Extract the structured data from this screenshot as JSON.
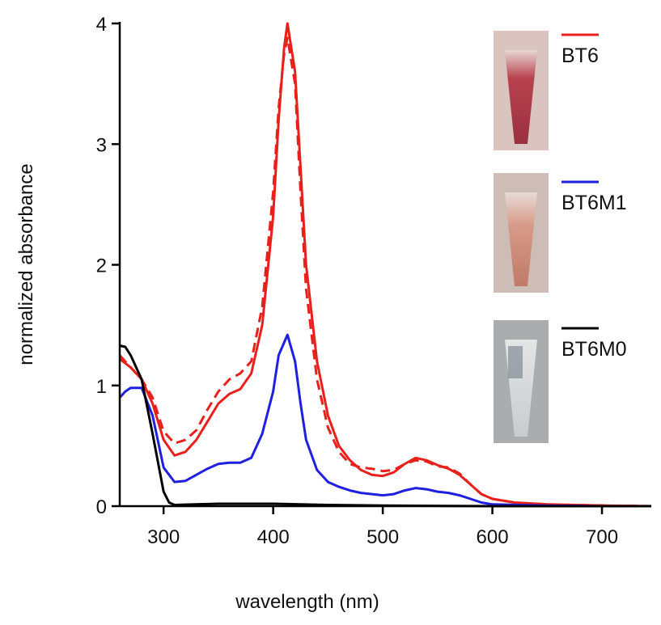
{
  "chart_data": {
    "type": "line",
    "xlabel": "wavelength (nm)",
    "ylabel": "normalized absorbance",
    "xlim": [
      260,
      745
    ],
    "xticks": [
      300,
      400,
      500,
      600,
      700
    ],
    "ylim": [
      0,
      4
    ],
    "yticks": [
      0,
      1,
      2,
      3,
      4
    ],
    "series": [
      {
        "name": "BT6",
        "color": "#e8201c",
        "x": [
          260,
          270,
          280,
          290,
          300,
          310,
          320,
          330,
          340,
          350,
          360,
          370,
          380,
          390,
          400,
          405,
          410,
          413,
          420,
          425,
          430,
          440,
          450,
          460,
          470,
          480,
          490,
          500,
          510,
          520,
          530,
          540,
          550,
          560,
          570,
          580,
          590,
          600,
          620,
          650,
          700,
          745
        ],
        "values": [
          1.22,
          1.15,
          1.05,
          0.85,
          0.55,
          0.42,
          0.45,
          0.55,
          0.7,
          0.85,
          0.93,
          0.97,
          1.1,
          1.5,
          2.4,
          3.2,
          3.8,
          4.0,
          3.6,
          2.8,
          2.0,
          1.2,
          0.75,
          0.5,
          0.38,
          0.3,
          0.26,
          0.25,
          0.28,
          0.35,
          0.4,
          0.38,
          0.34,
          0.31,
          0.26,
          0.18,
          0.1,
          0.06,
          0.03,
          0.015,
          0.005,
          0
        ]
      },
      {
        "color": "#e8201c",
        "dashed": true,
        "x": [
          260,
          270,
          280,
          290,
          300,
          310,
          320,
          330,
          340,
          350,
          360,
          370,
          380,
          390,
          400,
          405,
          410,
          413,
          420,
          425,
          430,
          440,
          450,
          460,
          470,
          480,
          490,
          500,
          510,
          520,
          530,
          540,
          550,
          560,
          570,
          580,
          590,
          600,
          620,
          650,
          700,
          745
        ],
        "values": [
          1.25,
          1.15,
          1.05,
          0.9,
          0.62,
          0.52,
          0.55,
          0.63,
          0.8,
          0.95,
          1.05,
          1.1,
          1.2,
          1.65,
          2.6,
          3.3,
          3.75,
          3.88,
          3.5,
          2.6,
          1.8,
          1.05,
          0.65,
          0.45,
          0.35,
          0.32,
          0.31,
          0.29,
          0.3,
          0.35,
          0.38,
          0.37,
          0.33,
          0.32,
          0.27,
          0.18,
          0.1,
          0.06,
          0.03,
          0.015,
          0.005,
          0
        ]
      },
      {
        "name": "BT6M1",
        "color": "#1f1fe0",
        "x": [
          260,
          265,
          270,
          280,
          290,
          300,
          310,
          320,
          330,
          340,
          350,
          360,
          370,
          380,
          390,
          400,
          405,
          413,
          420,
          425,
          430,
          440,
          450,
          460,
          470,
          480,
          490,
          500,
          510,
          520,
          530,
          540,
          550,
          560,
          570,
          580,
          590,
          600,
          650,
          700,
          745
        ],
        "values": [
          0.9,
          0.95,
          0.98,
          0.98,
          0.75,
          0.32,
          0.2,
          0.21,
          0.26,
          0.31,
          0.35,
          0.36,
          0.36,
          0.4,
          0.6,
          0.95,
          1.25,
          1.42,
          1.2,
          0.85,
          0.55,
          0.3,
          0.2,
          0.16,
          0.13,
          0.11,
          0.1,
          0.09,
          0.1,
          0.13,
          0.15,
          0.14,
          0.12,
          0.11,
          0.09,
          0.06,
          0.03,
          0.015,
          0.005,
          0,
          0
        ]
      },
      {
        "name": "BT6M0",
        "color": "#000000",
        "x": [
          260,
          265,
          270,
          280,
          290,
          300,
          305,
          310,
          350,
          400,
          450,
          500,
          600,
          745
        ],
        "values": [
          1.33,
          1.32,
          1.25,
          1.05,
          0.6,
          0.12,
          0.03,
          0.01,
          0.02,
          0.02,
          0.01,
          0.005,
          0,
          0
        ]
      }
    ]
  }
}
